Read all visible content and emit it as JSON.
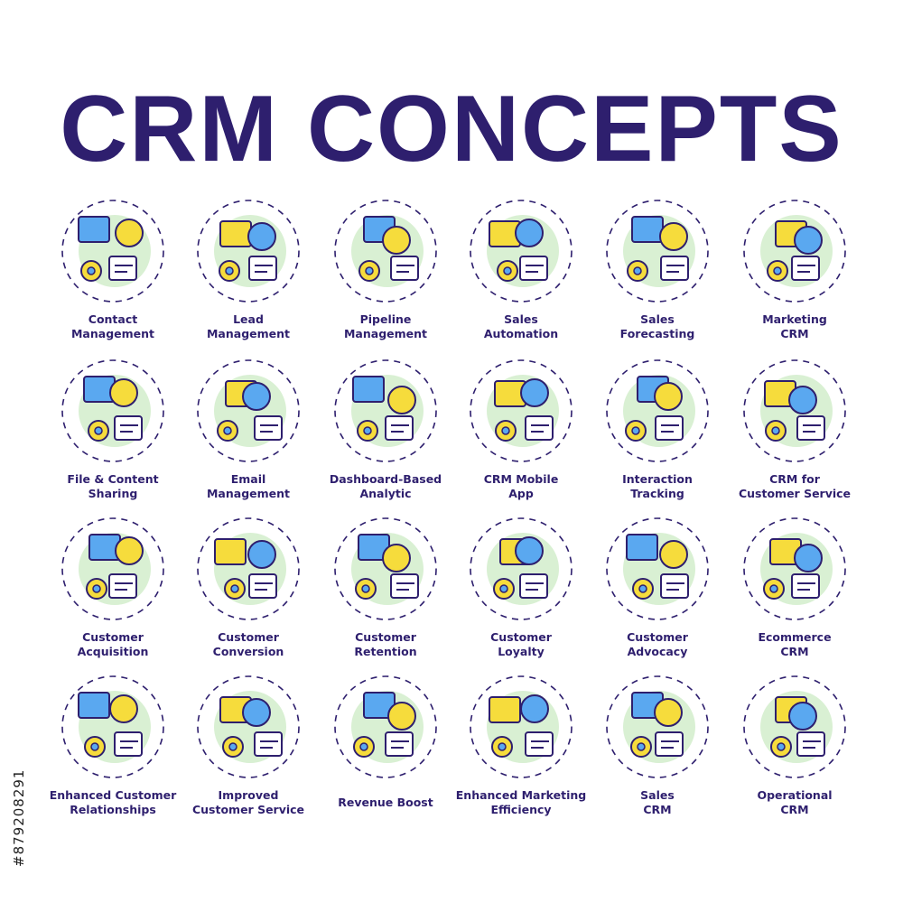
{
  "title": "CRM CONCEPTS",
  "stock_id": "#879208291",
  "colors": {
    "outline": "#2e1f6e",
    "blue": "#5aa8f0",
    "yellow": "#f6dc3c",
    "green": "#d9f0d3",
    "text": "#2e1f6e"
  },
  "icons": [
    {
      "lines": [
        "Contact",
        "Management"
      ],
      "icon": "contact-management-icon"
    },
    {
      "lines": [
        "Lead",
        "Management"
      ],
      "icon": "lead-management-icon"
    },
    {
      "lines": [
        "Pipeline",
        "Management"
      ],
      "icon": "pipeline-management-icon"
    },
    {
      "lines": [
        "Sales",
        "Automation"
      ],
      "icon": "sales-automation-icon"
    },
    {
      "lines": [
        "Sales",
        "Forecasting"
      ],
      "icon": "sales-forecasting-icon"
    },
    {
      "lines": [
        "Marketing",
        "CRM"
      ],
      "icon": "marketing-crm-icon"
    },
    {
      "lines": [
        "File & Content",
        "Sharing"
      ],
      "icon": "file-sharing-icon"
    },
    {
      "lines": [
        "Email",
        "Management"
      ],
      "icon": "email-management-icon"
    },
    {
      "lines": [
        "Dashboard-Based",
        "Analytic"
      ],
      "icon": "dashboard-analytic-icon"
    },
    {
      "lines": [
        "CRM Mobile",
        "App"
      ],
      "icon": "crm-mobile-app-icon"
    },
    {
      "lines": [
        "Interaction",
        "Tracking"
      ],
      "icon": "interaction-tracking-icon"
    },
    {
      "lines": [
        "CRM for",
        "Customer Service"
      ],
      "icon": "customer-service-icon"
    },
    {
      "lines": [
        "Customer",
        "Acquisition"
      ],
      "icon": "customer-acquisition-icon"
    },
    {
      "lines": [
        "Customer",
        "Conversion"
      ],
      "icon": "customer-conversion-icon"
    },
    {
      "lines": [
        "Customer",
        "Retention"
      ],
      "icon": "customer-retention-icon"
    },
    {
      "lines": [
        "Customer",
        "Loyalty"
      ],
      "icon": "customer-loyalty-icon"
    },
    {
      "lines": [
        "Customer",
        "Advocacy"
      ],
      "icon": "customer-advocacy-icon"
    },
    {
      "lines": [
        "Ecommerce",
        "CRM"
      ],
      "icon": "ecommerce-crm-icon"
    },
    {
      "lines": [
        "Enhanced Customer",
        "Relationships"
      ],
      "icon": "customer-relationships-icon"
    },
    {
      "lines": [
        "Improved",
        "Customer Service"
      ],
      "icon": "improved-service-icon"
    },
    {
      "lines": [
        "Revenue Boost"
      ],
      "icon": "revenue-boost-icon"
    },
    {
      "lines": [
        "Enhanced Marketing",
        "Efficiency"
      ],
      "icon": "marketing-efficiency-icon"
    },
    {
      "lines": [
        "Sales",
        "CRM"
      ],
      "icon": "sales-crm-icon"
    },
    {
      "lines": [
        "Operational",
        "CRM"
      ],
      "icon": "operational-crm-icon"
    }
  ]
}
